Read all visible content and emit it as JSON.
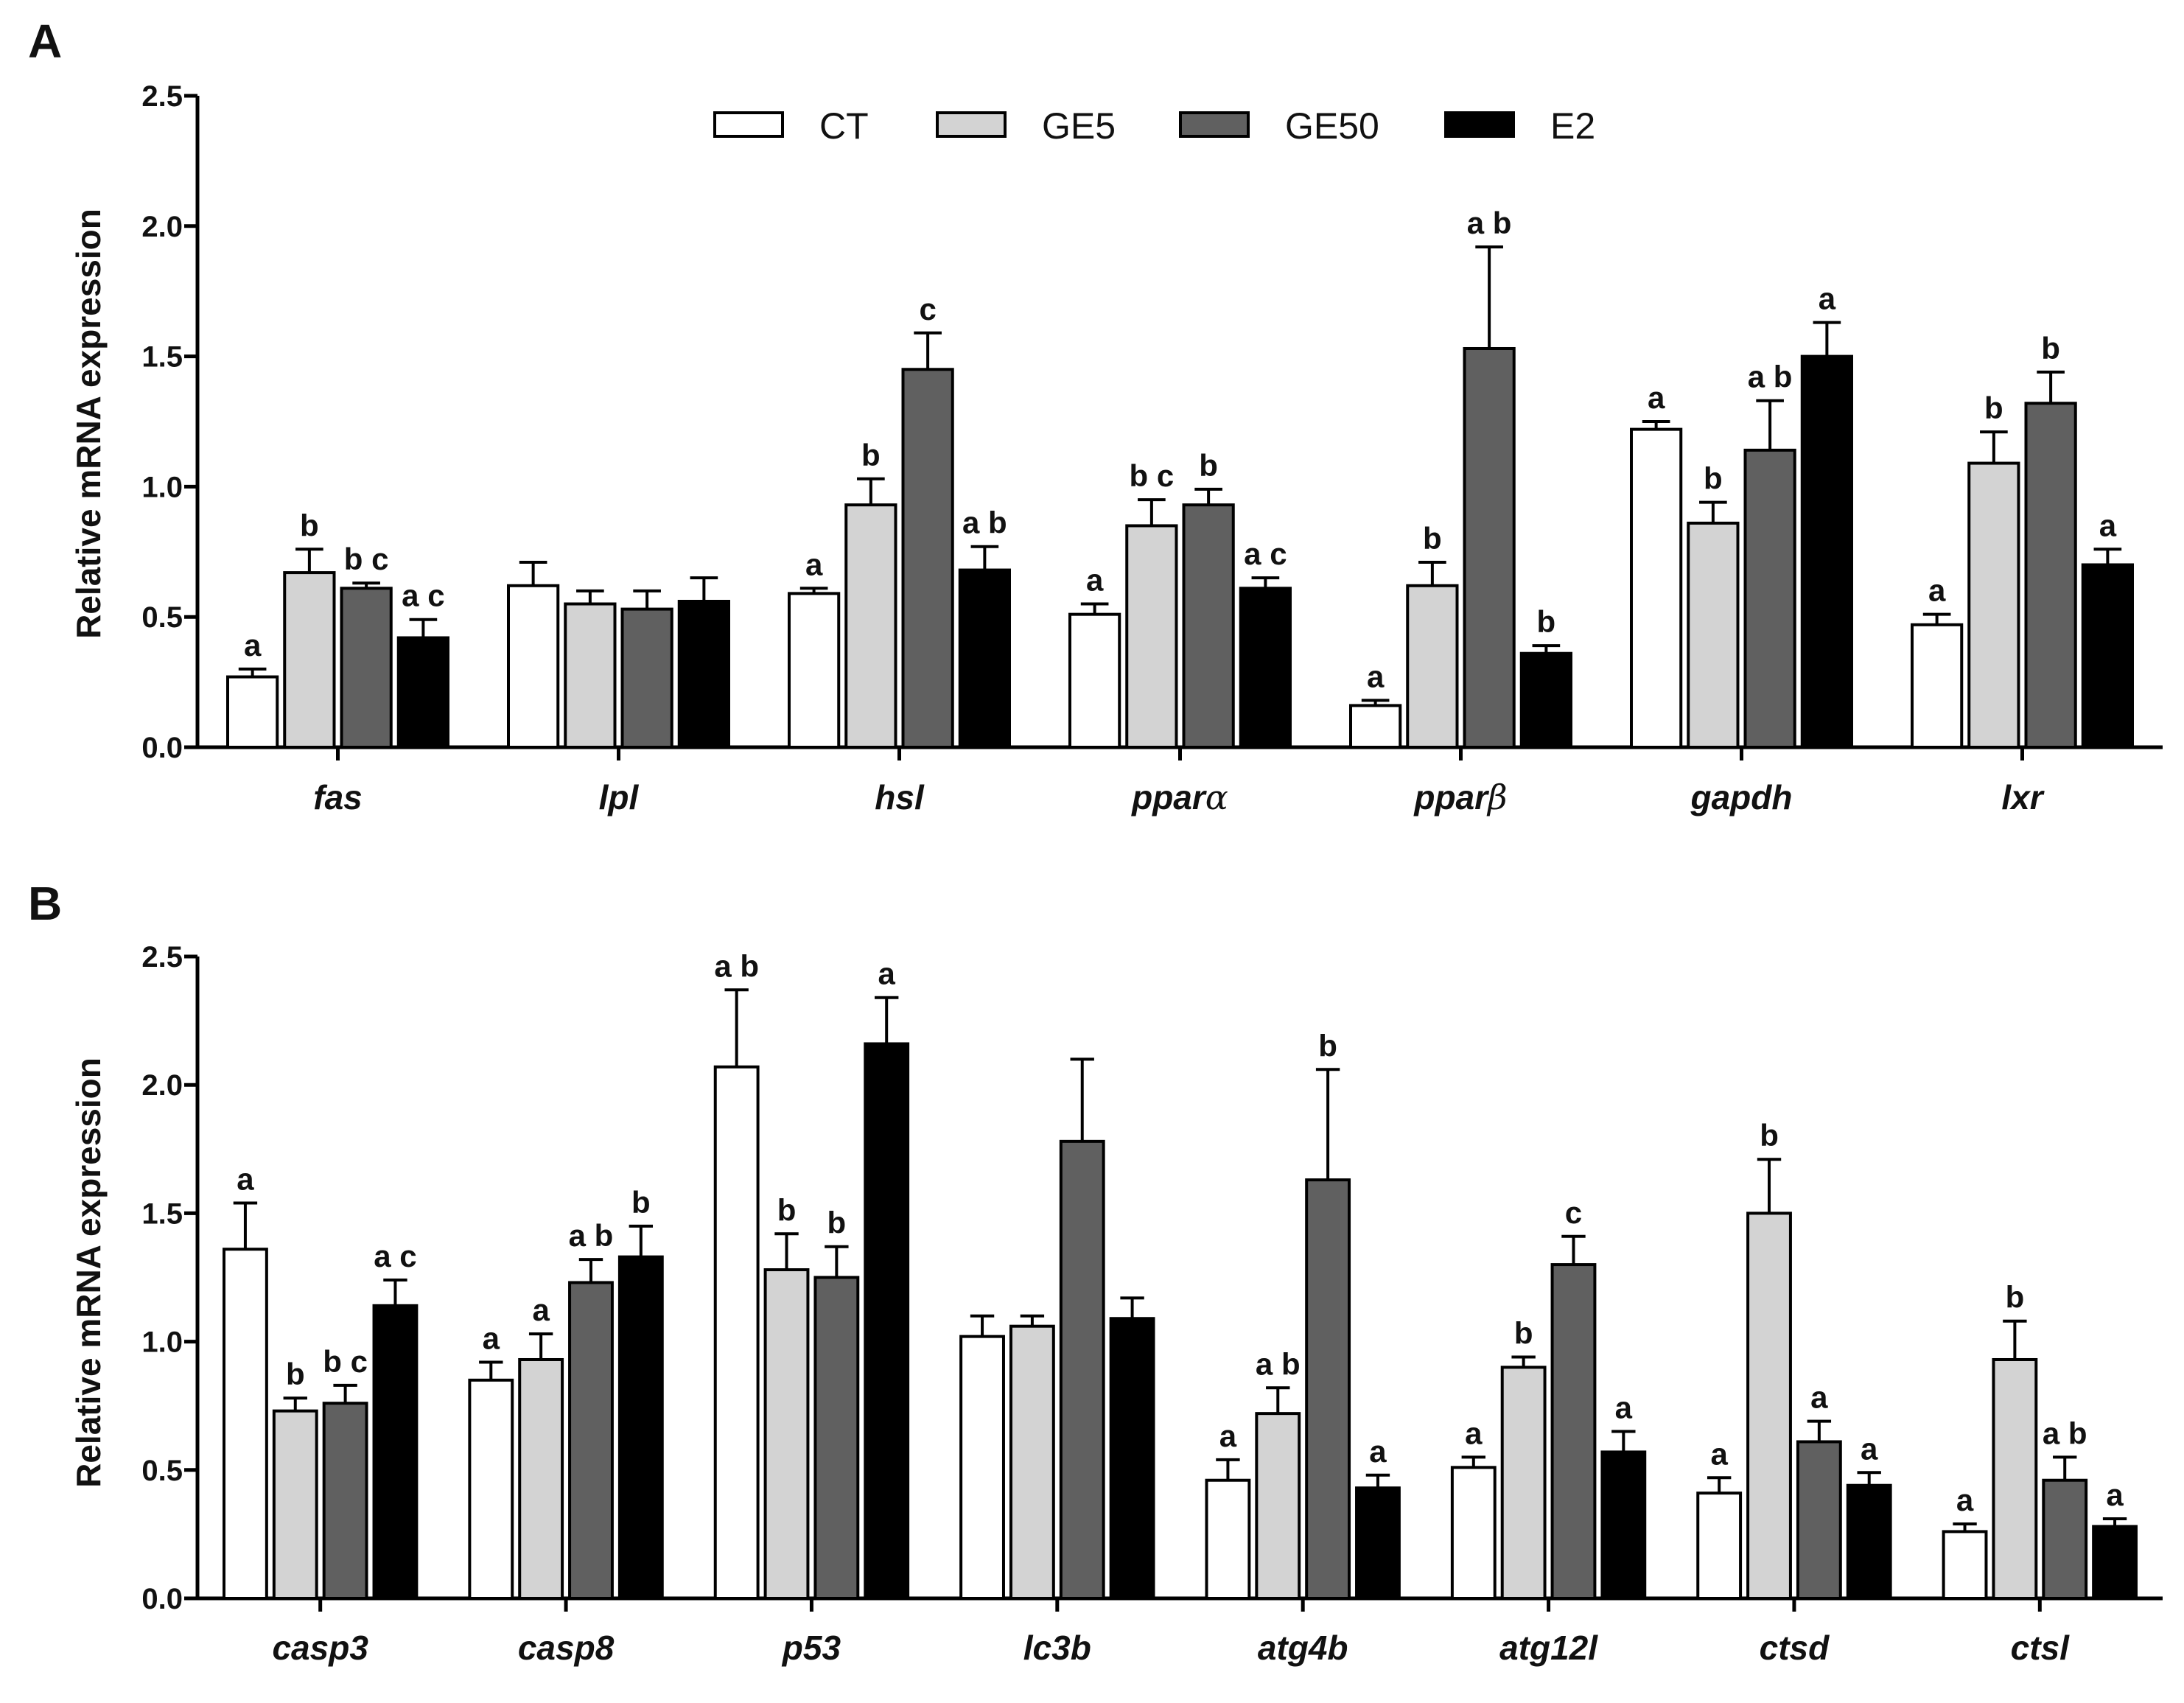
{
  "legend": [
    {
      "name": "CT",
      "color": "#ffffff"
    },
    {
      "name": "GE5",
      "color": "#d3d3d3"
    },
    {
      "name": "GE50",
      "color": "#606060"
    },
    {
      "name": "E2",
      "color": "#000000"
    }
  ],
  "chart_data": [
    {
      "type": "bar",
      "panel": "A",
      "ylabel": "Relative mRNA expression",
      "ylim": [
        0,
        2.5
      ],
      "yticks": [
        "0.0",
        "0.5",
        "1.0",
        "1.5",
        "2.0",
        "2.5"
      ],
      "categories": [
        "fas",
        "lpl",
        "hsl",
        "ppar",
        "ppar",
        "gapdh",
        "lxr"
      ],
      "category_greek": [
        "",
        "",
        "",
        "α",
        "β",
        "",
        ""
      ],
      "series": [
        {
          "name": "CT",
          "color": "#ffffff",
          "values": [
            0.27,
            0.62,
            0.59,
            0.51,
            0.16,
            1.22,
            0.47
          ],
          "errors": [
            0.03,
            0.09,
            0.02,
            0.04,
            0.02,
            0.03,
            0.04
          ],
          "labels": [
            "a",
            "",
            "a",
            "a",
            "a",
            "a",
            "a"
          ]
        },
        {
          "name": "GE5",
          "color": "#d3d3d3",
          "values": [
            0.67,
            0.55,
            0.93,
            0.85,
            0.62,
            0.86,
            1.09
          ],
          "errors": [
            0.09,
            0.05,
            0.1,
            0.1,
            0.09,
            0.08,
            0.12
          ],
          "labels": [
            "b",
            "",
            "b",
            "bc",
            "b",
            "b",
            "b"
          ]
        },
        {
          "name": "GE50",
          "color": "#606060",
          "values": [
            0.61,
            0.53,
            1.45,
            0.93,
            1.53,
            1.14,
            1.32
          ],
          "errors": [
            0.02,
            0.07,
            0.14,
            0.06,
            0.39,
            0.19,
            0.12
          ],
          "labels": [
            "bc",
            "",
            "c",
            "b",
            "ab",
            "ab",
            "b"
          ]
        },
        {
          "name": "E2",
          "color": "#000000",
          "values": [
            0.42,
            0.56,
            0.68,
            0.61,
            0.36,
            1.5,
            0.7
          ],
          "errors": [
            0.07,
            0.09,
            0.09,
            0.04,
            0.03,
            0.13,
            0.06
          ],
          "labels": [
            "ac",
            "",
            "ab",
            "ac",
            "b",
            "a",
            "a"
          ]
        }
      ]
    },
    {
      "type": "bar",
      "panel": "B",
      "ylabel": "Relative mRNA expression",
      "ylim": [
        0,
        2.5
      ],
      "yticks": [
        "0.0",
        "0.5",
        "1.0",
        "1.5",
        "2.0",
        "2.5"
      ],
      "categories": [
        "casp3",
        "casp8",
        "p53",
        "lc3b",
        "atg4b",
        "atg12l",
        "ctsd",
        "ctsl"
      ],
      "category_greek": [
        "",
        "",
        "",
        "",
        "",
        "",
        "",
        ""
      ],
      "series": [
        {
          "name": "CT",
          "color": "#ffffff",
          "values": [
            1.36,
            0.85,
            2.07,
            1.02,
            0.46,
            0.51,
            0.41,
            0.26
          ],
          "errors": [
            0.18,
            0.07,
            0.3,
            0.08,
            0.08,
            0.04,
            0.06,
            0.03
          ],
          "labels": [
            "a",
            "a",
            "ab",
            "",
            "a",
            "a",
            "a",
            "a"
          ]
        },
        {
          "name": "GE5",
          "color": "#d3d3d3",
          "values": [
            0.73,
            0.93,
            1.28,
            1.06,
            0.72,
            0.9,
            1.5,
            0.93
          ],
          "errors": [
            0.05,
            0.1,
            0.14,
            0.04,
            0.1,
            0.04,
            0.21,
            0.15
          ],
          "labels": [
            "b",
            "a",
            "b",
            "",
            "ab",
            "b",
            "b",
            "b"
          ]
        },
        {
          "name": "GE50",
          "color": "#606060",
          "values": [
            0.76,
            1.23,
            1.25,
            1.78,
            1.63,
            1.3,
            0.61,
            0.46
          ],
          "errors": [
            0.07,
            0.09,
            0.12,
            0.32,
            0.43,
            0.11,
            0.08,
            0.09
          ],
          "labels": [
            "bc",
            "ab",
            "b",
            "",
            "b",
            "c",
            "a",
            "ab"
          ]
        },
        {
          "name": "E2",
          "color": "#000000",
          "values": [
            1.14,
            1.33,
            2.16,
            1.09,
            0.43,
            0.57,
            0.44,
            0.28
          ],
          "errors": [
            0.1,
            0.12,
            0.18,
            0.08,
            0.05,
            0.08,
            0.05,
            0.03
          ],
          "labels": [
            "ac",
            "b",
            "a",
            "",
            "a",
            "a",
            "a",
            "a"
          ]
        }
      ]
    }
  ]
}
